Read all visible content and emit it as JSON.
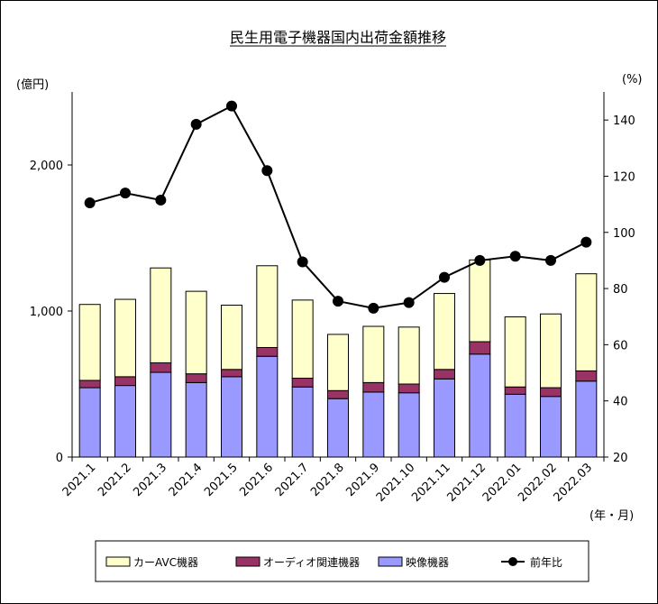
{
  "chart_data": {
    "type": "bar",
    "title": "民生用電子機器国内出荷金額推移",
    "left_unit": "(億円)",
    "right_unit": "(%)",
    "x_unit": "(年・月)",
    "categories": [
      "2021.1",
      "2021.2",
      "2021.3",
      "2021.4",
      "2021.5",
      "2021.6",
      "2021.7",
      "2021.8",
      "2021.9",
      "2021.10",
      "2021.11",
      "2021.12",
      "2022.01",
      "2022.02",
      "2022.03"
    ],
    "ylim": [
      0,
      2500
    ],
    "yticks": [
      0,
      1000,
      2000
    ],
    "ytick_labels": [
      "0",
      "1,000",
      "2,000"
    ],
    "y2lim": [
      20,
      150
    ],
    "y2ticks": [
      20,
      40,
      60,
      80,
      100,
      120,
      140
    ],
    "series": [
      {
        "name": "映像機器",
        "color": "#9999ff",
        "stack": "main",
        "values": [
          475,
          490,
          580,
          510,
          550,
          690,
          480,
          400,
          445,
          440,
          535,
          705,
          430,
          415,
          520
        ]
      },
      {
        "name": "オーディオ関連機器",
        "color": "#993366",
        "stack": "main",
        "values": [
          50,
          60,
          65,
          60,
          50,
          60,
          60,
          55,
          65,
          60,
          65,
          85,
          50,
          60,
          70
        ]
      },
      {
        "name": "カーAVC機器",
        "color": "#ffffcc",
        "stack": "main",
        "values": [
          520,
          530,
          650,
          565,
          440,
          560,
          535,
          385,
          385,
          390,
          520,
          560,
          480,
          505,
          665
        ]
      },
      {
        "name": "前年比",
        "color": "#000000",
        "type": "line",
        "axis": "right",
        "values": [
          110.5,
          114,
          111.5,
          138.5,
          145,
          122,
          89.5,
          75.5,
          73,
          75,
          84,
          90,
          91.5,
          90,
          96.5
        ]
      }
    ],
    "legend_order": [
      "カーAVC機器",
      "オーディオ関連機器",
      "映像機器",
      "前年比"
    ],
    "legend_position": "bottom",
    "grid": false
  }
}
